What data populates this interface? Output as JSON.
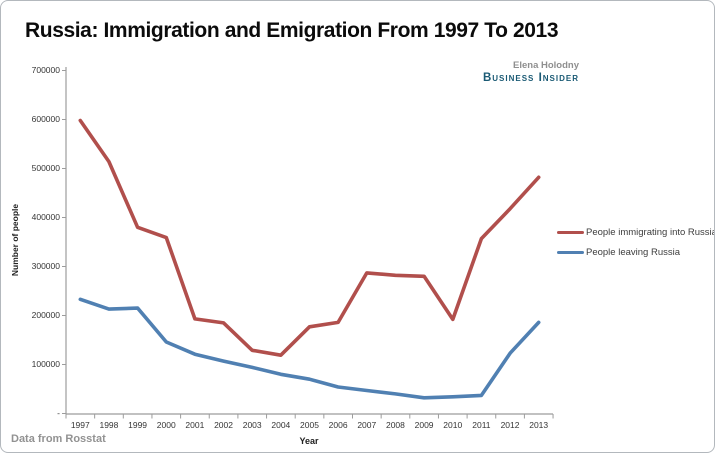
{
  "title": "Russia: Immigration and Emigration From 1997 To 2013",
  "attribution": {
    "author": "Elena Holodny",
    "brand": "Business Insider",
    "brand_color": "#1a5a74"
  },
  "footer": {
    "source_note": "Data from Rosstat"
  },
  "chart_data": {
    "type": "line",
    "title": "Russia: Immigration and Emigration From 1997 To 2013",
    "xlabel": "Year",
    "ylabel": "Number of people",
    "ylim": [
      0,
      700000
    ],
    "ytick_step": 100000,
    "ytick_labels": [
      "-",
      "100000",
      "200000",
      "300000",
      "400000",
      "500000",
      "600000",
      "700000"
    ],
    "grid": false,
    "legend_position": "right",
    "axis_color": "#9c9c9c",
    "x": [
      1997,
      1998,
      1999,
      2000,
      2001,
      2002,
      2003,
      2004,
      2005,
      2006,
      2007,
      2008,
      2009,
      2010,
      2011,
      2012,
      2013
    ],
    "series": [
      {
        "name": "People immigrating into Russia",
        "color": "#b14f4c",
        "values": [
          598000,
          514000,
          380000,
          359000,
          193000,
          185000,
          129000,
          119000,
          177000,
          186000,
          287000,
          282000,
          280000,
          192000,
          357000,
          418000,
          482000
        ]
      },
      {
        "name": "People leaving Russia",
        "color": "#5080b2",
        "values": [
          233000,
          213000,
          215000,
          146000,
          121000,
          107000,
          94000,
          80000,
          70000,
          54000,
          47000,
          40000,
          32000,
          34000,
          37000,
          123000,
          186000
        ]
      }
    ]
  }
}
